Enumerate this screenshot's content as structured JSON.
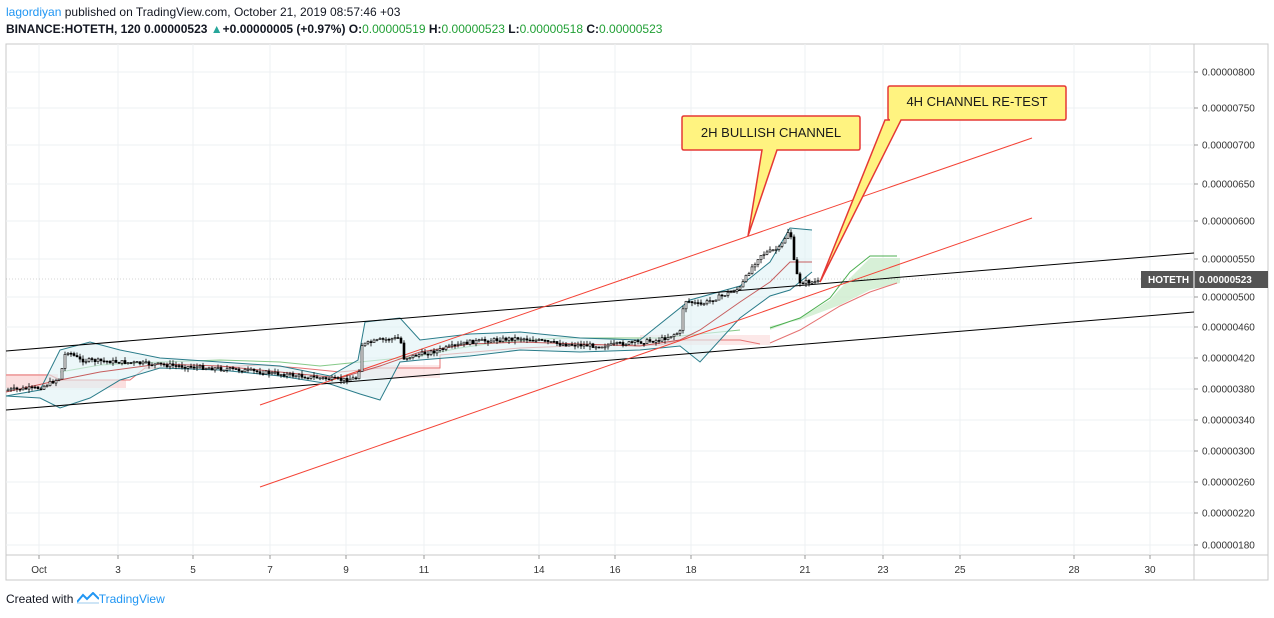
{
  "header": {
    "author": "lagordiyan",
    "published_text": "published on TradingView.com, October 21, 2019 08:57:46 +03",
    "symbol": "BINANCE:HOTETH, 120",
    "last_price": "0.00000523",
    "change_arrow": "▲",
    "change": "+0.00000005 (+0.97%)",
    "o_label": "O:",
    "o_value": "0.00000519",
    "h_label": "H:",
    "h_value": "0.00000523",
    "l_label": "L:",
    "l_value": "0.00000518",
    "c_label": "C:",
    "c_value": "0.00000523"
  },
  "footer": {
    "created_with": "Created with",
    "brand": "TradingView"
  },
  "colors": {
    "trendline": "#000000",
    "channel": "#f44336",
    "bollinger": "#2a7c8a",
    "callout_fill": "#fff380",
    "callout_border": "#e53935",
    "price_tag": "#545454"
  },
  "chart_data": {
    "type": "candlestick",
    "price_tag": {
      "symbol": "HOTETH",
      "value": "0.00000523"
    },
    "y_ticks": [
      "0.00000800",
      "0.00000750",
      "0.00000700",
      "0.00000650",
      "0.00000600",
      "0.00000550",
      "0.00000500",
      "0.00000460",
      "0.00000420",
      "0.00000380",
      "0.00000340",
      "0.00000300",
      "0.00000260",
      "0.00000220",
      "0.00000180"
    ],
    "x_ticks": [
      "Oct",
      "3",
      "5",
      "7",
      "9",
      "11",
      "14",
      "16",
      "18",
      "21",
      "23",
      "25",
      "28",
      "30"
    ],
    "annotations": [
      {
        "text": "2H BULLISH CHANNEL"
      },
      {
        "text": "4H CHANNEL RE-TEST"
      }
    ],
    "approx_close_series": [
      [
        "Oct 1",
        3.85e-06
      ],
      [
        "Oct 2",
        4.3e-06
      ],
      [
        "Oct 3",
        4.18e-06
      ],
      [
        "Oct 4",
        4.12e-06
      ],
      [
        "Oct 5",
        4.1e-06
      ],
      [
        "Oct 6",
        4.05e-06
      ],
      [
        "Oct 7",
        3.98e-06
      ],
      [
        "Oct 8",
        3.88e-06
      ],
      [
        "Oct 9",
        3.9e-06
      ],
      [
        "Oct 10",
        4.4e-06
      ],
      [
        "Oct 11",
        4.25e-06
      ],
      [
        "Oct 12",
        4.35e-06
      ],
      [
        "Oct 13",
        4.45e-06
      ],
      [
        "Oct 14",
        4.4e-06
      ],
      [
        "Oct 15",
        4.3e-06
      ],
      [
        "Oct 16",
        4.32e-06
      ],
      [
        "Oct 17",
        4.45e-06
      ],
      [
        "Oct 18",
        4.8e-06
      ],
      [
        "Oct 19",
        5.2e-06
      ],
      [
        "Oct 20",
        5.9e-06
      ],
      [
        "Oct 21",
        5.23e-06
      ]
    ]
  }
}
